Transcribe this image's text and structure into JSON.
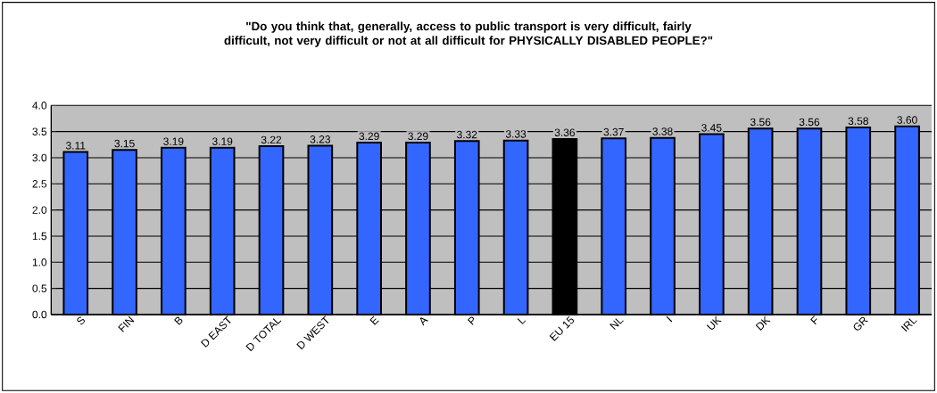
{
  "chart_data": {
    "type": "bar",
    "title": "\"Do you think that, generally, access to public transport is very difficult, fairly difficult, not very difficult or not at all difficult for PHYSICALLY DISABLED PEOPLE?\"",
    "categories": [
      "S",
      "FIN",
      "B",
      "D EAST",
      "D TOTAL",
      "D WEST",
      "E",
      "A",
      "P",
      "L",
      "EU 15",
      "NL",
      "I",
      "UK",
      "DK",
      "F",
      "GR",
      "IRL"
    ],
    "values": [
      3.11,
      3.15,
      3.19,
      3.19,
      3.22,
      3.23,
      3.29,
      3.29,
      3.32,
      3.33,
      3.36,
      3.37,
      3.38,
      3.45,
      3.56,
      3.56,
      3.58,
      3.6
    ],
    "colors": [
      "#3366ff",
      "#3366ff",
      "#3366ff",
      "#3366ff",
      "#3366ff",
      "#3366ff",
      "#3366ff",
      "#3366ff",
      "#3366ff",
      "#3366ff",
      "#000000",
      "#3366ff",
      "#3366ff",
      "#3366ff",
      "#3366ff",
      "#3366ff",
      "#3366ff",
      "#3366ff"
    ],
    "ylim": [
      0,
      4
    ],
    "yticks": [
      {
        "value": 0,
        "label": "0.0"
      },
      {
        "value": 0.5,
        "label": "0.5"
      },
      {
        "value": 1,
        "label": "1.0"
      },
      {
        "value": 1.5,
        "label": "1.5"
      },
      {
        "value": 2,
        "label": "2.0"
      },
      {
        "value": 2.5,
        "label": "2.5"
      },
      {
        "value": 3,
        "label": "3.0"
      },
      {
        "value": 3.5,
        "label": "3.5"
      },
      {
        "value": 4,
        "label": "4.0"
      }
    ],
    "grid": "y",
    "value_labels": [
      "3.11",
      "3.15",
      "3.19",
      "3.19",
      "3.22",
      "3.23",
      "3.29",
      "3.29",
      "3.32",
      "3.33",
      "3.36",
      "3.37",
      "3.38",
      "3.45",
      "3.56",
      "3.56",
      "3.58",
      "3.60"
    ]
  }
}
